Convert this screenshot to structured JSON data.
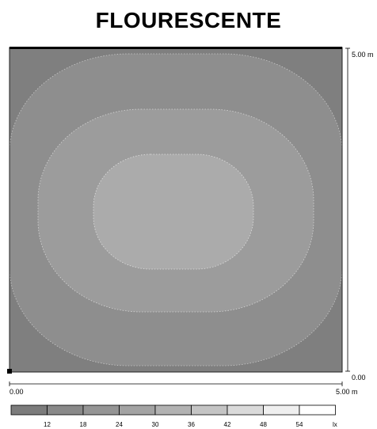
{
  "title": "FLOURESCENTE",
  "axes": {
    "y_top": "5.00 m",
    "y_bottom": "0.00",
    "x_left": "0.00",
    "x_right": "5.00 m"
  },
  "scale": {
    "values": [
      "12",
      "18",
      "24",
      "30",
      "36",
      "42",
      "48",
      "54"
    ],
    "unit": "lx",
    "colors": [
      "#7c7c7c",
      "#898989",
      "#959595",
      "#a3a3a3",
      "#b2b2b2",
      "#c4c4c4",
      "#dadada",
      "#efefef",
      "#ffffff"
    ]
  },
  "contour_colors": {
    "outer": "#7f7f7f",
    "middle": "#8e8e8e",
    "inner": "#9c9c9c",
    "center": "#ababab"
  }
}
